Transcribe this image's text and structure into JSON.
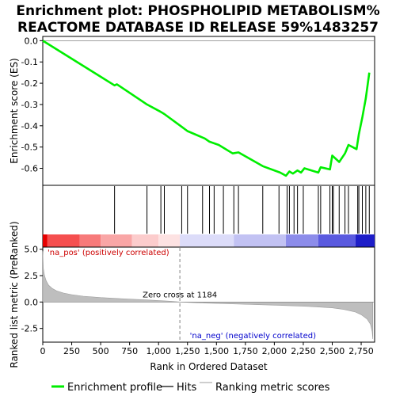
{
  "title_lines": [
    "Enrichment plot: PHOSPHOLIPID METABOLISM%",
    "REACTOME DATABASE ID RELEASE 59%1483257"
  ],
  "legend": {
    "enrichment_profile": "Enrichment profile",
    "hits": "Hits",
    "ranking_metric": "Ranking metric scores"
  },
  "colors": {
    "profile": "#00ee00",
    "hits": "#000000",
    "metric_fill": "#bebebe",
    "zero_cross_line": "#808080",
    "pos_label": "#cc0000",
    "neg_label": "#0000cc"
  },
  "chart_data": [
    {
      "type": "line",
      "ylabel": "Enrichment score (ES)",
      "xlim": [
        0,
        2866
      ],
      "ylim": [
        -0.68,
        0.02
      ],
      "yticks": [
        "0.0",
        "-0.1",
        "-0.2",
        "-0.3",
        "-0.4",
        "-0.5",
        "-0.6"
      ],
      "ytick_values": [
        0,
        -0.1,
        -0.2,
        -0.3,
        -0.4,
        -0.5,
        -0.6
      ],
      "x": [
        0,
        620,
        640,
        900,
        1020,
        1050,
        1200,
        1250,
        1400,
        1440,
        1520,
        1640,
        1690,
        1900,
        2050,
        2100,
        2130,
        2160,
        2200,
        2230,
        2260,
        2380,
        2400,
        2480,
        2500,
        2560,
        2610,
        2640,
        2710,
        2730,
        2760,
        2790,
        2820
      ],
      "y": [
        0.0,
        -0.21,
        -0.205,
        -0.3,
        -0.335,
        -0.345,
        -0.405,
        -0.425,
        -0.46,
        -0.475,
        -0.49,
        -0.53,
        -0.525,
        -0.59,
        -0.62,
        -0.635,
        -0.615,
        -0.625,
        -0.61,
        -0.62,
        -0.6,
        -0.62,
        -0.595,
        -0.605,
        -0.54,
        -0.57,
        -0.53,
        -0.49,
        -0.51,
        -0.44,
        -0.36,
        -0.27,
        -0.15
      ]
    },
    {
      "type": "scatter",
      "description_label": "Hits",
      "x": [
        620,
        900,
        1020,
        1050,
        1200,
        1250,
        1380,
        1440,
        1480,
        1560,
        1650,
        1690,
        1900,
        2040,
        2110,
        2130,
        2170,
        2200,
        2250,
        2380,
        2400,
        2480,
        2500,
        2510,
        2560,
        2610,
        2640,
        2720,
        2730,
        2760,
        2790,
        2820
      ]
    },
    {
      "type": "area",
      "xlabel": "Rank in Ordered Dataset",
      "ylabel": "Ranked list metric (PreRanked)",
      "xlim": [
        0,
        2866
      ],
      "ylim": [
        -3.8,
        5.2
      ],
      "yticks": [
        "5.0",
        "2.5",
        "0.0",
        "-2.5"
      ],
      "ytick_values": [
        5.0,
        2.5,
        0.0,
        -2.5
      ],
      "xticks": [
        "0",
        "250",
        "500",
        "750",
        "1,000",
        "1,250",
        "1,500",
        "1,750",
        "2,000",
        "2,250",
        "2,500",
        "2,750"
      ],
      "xtick_values": [
        0,
        250,
        500,
        750,
        1000,
        1250,
        1500,
        1750,
        2000,
        2250,
        2500,
        2750
      ],
      "x": [
        0,
        5,
        15,
        30,
        50,
        80,
        120,
        180,
        250,
        350,
        500,
        700,
        900,
        1100,
        1184,
        1400,
        1700,
        2000,
        2300,
        2500,
        2600,
        2700,
        2750,
        2800,
        2830,
        2845,
        2850
      ],
      "y": [
        4.8,
        3.2,
        2.5,
        2.0,
        1.6,
        1.3,
        1.05,
        0.85,
        0.7,
        0.55,
        0.42,
        0.3,
        0.2,
        0.08,
        0.0,
        -0.1,
        -0.2,
        -0.3,
        -0.42,
        -0.55,
        -0.7,
        -0.95,
        -1.2,
        -1.6,
        -2.1,
        -2.8,
        -3.5
      ],
      "zero_cross": 1184,
      "zero_cross_label": "Zero cross at 1184",
      "pos_label": "'na_pos' (positively correlated)",
      "neg_label": "'na_neg' (negatively correlated)"
    }
  ],
  "heat_band": [
    {
      "from": 0,
      "to": 40,
      "color": "#e60000"
    },
    {
      "from": 40,
      "to": 320,
      "color": "#f54f4f"
    },
    {
      "from": 320,
      "to": 500,
      "color": "#f77a7a"
    },
    {
      "from": 500,
      "to": 770,
      "color": "#f9a6a6"
    },
    {
      "from": 770,
      "to": 1000,
      "color": "#fccccc"
    },
    {
      "from": 1000,
      "to": 1184,
      "color": "#fde2e2"
    },
    {
      "from": 1184,
      "to": 1650,
      "color": "#dcdcf9"
    },
    {
      "from": 1650,
      "to": 2100,
      "color": "#c2c2f3"
    },
    {
      "from": 2100,
      "to": 2380,
      "color": "#8c8cea"
    },
    {
      "from": 2380,
      "to": 2700,
      "color": "#5a5adf"
    },
    {
      "from": 2700,
      "to": 2866,
      "color": "#1e1ec8"
    }
  ]
}
